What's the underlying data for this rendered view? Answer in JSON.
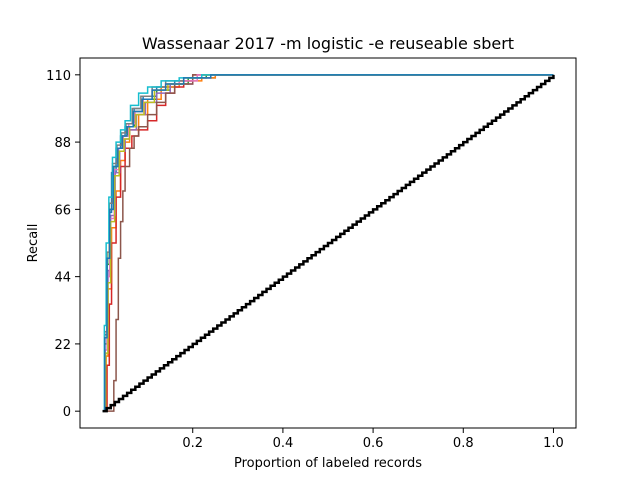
{
  "chart_data": {
    "type": "line",
    "title": "Wassenaar 2017 -m logistic -e reuseable sbert",
    "xlabel": "Proportion of labeled records",
    "ylabel": "Recall",
    "xlim": [
      -0.05,
      1.05
    ],
    "ylim": [
      -5.5,
      115.5
    ],
    "xticks": [
      0.2,
      0.4,
      0.6,
      0.8,
      1.0
    ],
    "xtick_labels": [
      "0.2",
      "0.4",
      "0.6",
      "0.8",
      "1.0"
    ],
    "yticks": [
      0,
      22,
      44,
      66,
      88,
      110
    ],
    "ytick_labels": [
      "0",
      "22",
      "44",
      "66",
      "88",
      "110"
    ],
    "grid": false,
    "series": [
      {
        "color": "#1f77b4",
        "x": [
          0,
          0.005,
          0.01,
          0.015,
          0.02,
          0.03,
          0.04,
          0.05,
          0.07,
          0.09,
          0.12,
          0.16,
          0.2,
          0.25,
          1.0
        ],
        "y": [
          0,
          25,
          50,
          65,
          78,
          86,
          90,
          93,
          99,
          103,
          106,
          108,
          109,
          110,
          110
        ]
      },
      {
        "color": "#ff7f0e",
        "x": [
          0,
          0.008,
          0.012,
          0.02,
          0.03,
          0.04,
          0.05,
          0.06,
          0.08,
          0.1,
          0.13,
          0.17,
          0.22,
          0.25,
          1.0
        ],
        "y": [
          0,
          18,
          40,
          60,
          72,
          82,
          88,
          92,
          97,
          102,
          106,
          108,
          109,
          110,
          110
        ]
      },
      {
        "color": "#2ca02c",
        "x": [
          0,
          0.005,
          0.01,
          0.015,
          0.025,
          0.035,
          0.045,
          0.055,
          0.07,
          0.09,
          0.12,
          0.15,
          0.19,
          0.23,
          1.0
        ],
        "y": [
          0,
          22,
          48,
          66,
          80,
          86,
          90,
          93,
          98,
          102,
          105,
          107,
          109,
          110,
          110
        ]
      },
      {
        "color": "#d62728",
        "x": [
          0,
          0.01,
          0.015,
          0.02,
          0.03,
          0.04,
          0.05,
          0.065,
          0.08,
          0.1,
          0.12,
          0.14,
          0.16,
          0.18,
          0.2,
          1.0
        ],
        "y": [
          0,
          15,
          35,
          55,
          70,
          80,
          86,
          90,
          92,
          95,
          100,
          104,
          106,
          108,
          110,
          110
        ]
      },
      {
        "color": "#9467bd",
        "x": [
          0,
          0.005,
          0.012,
          0.018,
          0.028,
          0.038,
          0.05,
          0.06,
          0.075,
          0.095,
          0.12,
          0.15,
          0.2,
          0.24,
          1.0
        ],
        "y": [
          0,
          24,
          46,
          64,
          78,
          85,
          89,
          92,
          97,
          101,
          104,
          107,
          109,
          110,
          110
        ]
      },
      {
        "color": "#8c564b",
        "x": [
          0,
          0.02,
          0.025,
          0.03,
          0.035,
          0.04,
          0.045,
          0.05,
          0.06,
          0.07,
          0.08,
          0.1,
          0.12,
          0.14,
          0.16,
          0.2,
          1.0
        ],
        "y": [
          0,
          0,
          10,
          30,
          50,
          62,
          72,
          80,
          86,
          90,
          93,
          97,
          101,
          104,
          107,
          110,
          110
        ]
      },
      {
        "color": "#e377c2",
        "x": [
          0,
          0.006,
          0.01,
          0.016,
          0.026,
          0.036,
          0.046,
          0.058,
          0.072,
          0.09,
          0.11,
          0.14,
          0.17,
          0.21,
          1.0
        ],
        "y": [
          0,
          20,
          44,
          63,
          79,
          86,
          90,
          94,
          98,
          102,
          105,
          107,
          108,
          110,
          110
        ]
      },
      {
        "color": "#7f7f7f",
        "x": [
          0,
          0.005,
          0.01,
          0.015,
          0.022,
          0.032,
          0.042,
          0.052,
          0.066,
          0.085,
          0.11,
          0.14,
          0.18,
          0.22,
          1.0
        ],
        "y": [
          0,
          26,
          52,
          68,
          81,
          87,
          91,
          94,
          99,
          103,
          106,
          108,
          109,
          110,
          110
        ]
      },
      {
        "color": "#bcbd22",
        "x": [
          0,
          0.007,
          0.012,
          0.018,
          0.027,
          0.037,
          0.048,
          0.06,
          0.074,
          0.092,
          0.115,
          0.145,
          0.18,
          0.22,
          1.0
        ],
        "y": [
          0,
          19,
          42,
          62,
          77,
          85,
          89,
          93,
          97,
          101,
          105,
          107,
          109,
          110,
          110
        ]
      },
      {
        "color": "#17becf",
        "x": [
          0,
          0.004,
          0.008,
          0.014,
          0.022,
          0.03,
          0.04,
          0.05,
          0.062,
          0.08,
          0.1,
          0.13,
          0.17,
          0.22,
          1.0
        ],
        "y": [
          0,
          28,
          55,
          70,
          83,
          88,
          92,
          95,
          100,
          104,
          106,
          108,
          109,
          110,
          110
        ]
      },
      {
        "color": "#1f77b4",
        "x": [
          0,
          0.005,
          0.01,
          0.016,
          0.024,
          0.034,
          0.044,
          0.054,
          0.068,
          0.088,
          0.11,
          0.14,
          0.18,
          0.24,
          1.0
        ],
        "y": [
          0,
          24,
          50,
          66,
          80,
          86,
          90,
          93,
          98,
          102,
          105,
          107,
          109,
          110,
          110
        ]
      }
    ],
    "baseline": {
      "color": "#000000",
      "x": [
        0,
        1.0
      ],
      "y": [
        0,
        110
      ]
    }
  }
}
